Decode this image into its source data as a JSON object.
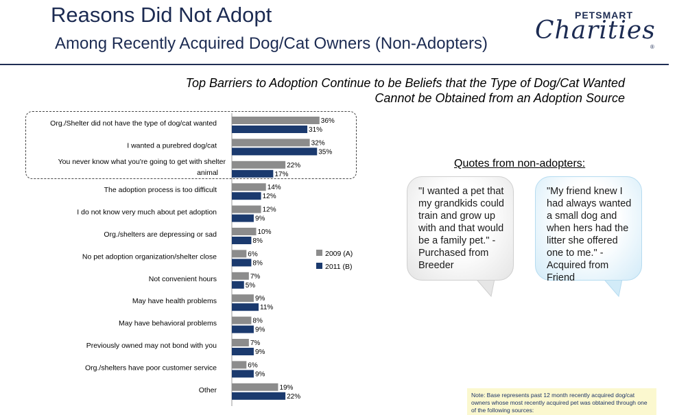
{
  "header": {
    "title": "Reasons Did Not Adopt",
    "subtitle": "Among Recently Acquired Dog/Cat Owners (Non-Adopters)",
    "logo_brand": "PETSMART",
    "logo_script": "Charities",
    "logo_mark": "®"
  },
  "headline": {
    "line1": "Top Barriers to Adoption Continue to be Beliefs that the Type of Dog/Cat Wanted",
    "line2": "Cannot be Obtained from an Adoption Source"
  },
  "quotes": {
    "title": "Quotes from non-adopters:",
    "q1": "\"I wanted a pet that my grandkids could train and grow up with and that would be a family pet.\" - Purchased from Breeder",
    "q2": "\"My friend knew I had always wanted a small dog and when hers had the litter she offered one to me.\" - Acquired from Friend"
  },
  "note": "Note: Base represents past 12 month recently acquired dog/cat owners whose most recently acquired pet was obtained through one of the following sources:",
  "colors": {
    "series_2009": "#8c8c8c",
    "series_2011": "#1b3a6e",
    "title": "#1c2b52"
  },
  "chart_data": {
    "type": "bar",
    "orientation": "horizontal",
    "categories": [
      "Org./Shelter did not have the type of dog/cat wanted",
      "I wanted a purebred dog/cat",
      "You never know what you're going to get with shelter animal",
      "The adoption process is too difficult",
      "I do not know very much about pet adoption",
      "Org./shelters are depressing or sad",
      "No pet adoption organization/shelter close",
      "Not convenient hours",
      "May  have health problems",
      "May have behavioral problems",
      "Previously owned may not bond with you",
      "Org./shelters have poor customer service",
      "Other"
    ],
    "series": [
      {
        "name": "2009 (A)",
        "values": [
          36,
          32,
          22,
          14,
          12,
          10,
          6,
          7,
          9,
          8,
          7,
          6,
          19
        ]
      },
      {
        "name": "2011 (B)",
        "values": [
          31,
          35,
          17,
          12,
          9,
          8,
          8,
          5,
          11,
          9,
          9,
          9,
          22
        ]
      }
    ],
    "value_suffix": "%",
    "legend_position": "right",
    "highlighted_categories": [
      0,
      1,
      2
    ],
    "grid": false
  }
}
